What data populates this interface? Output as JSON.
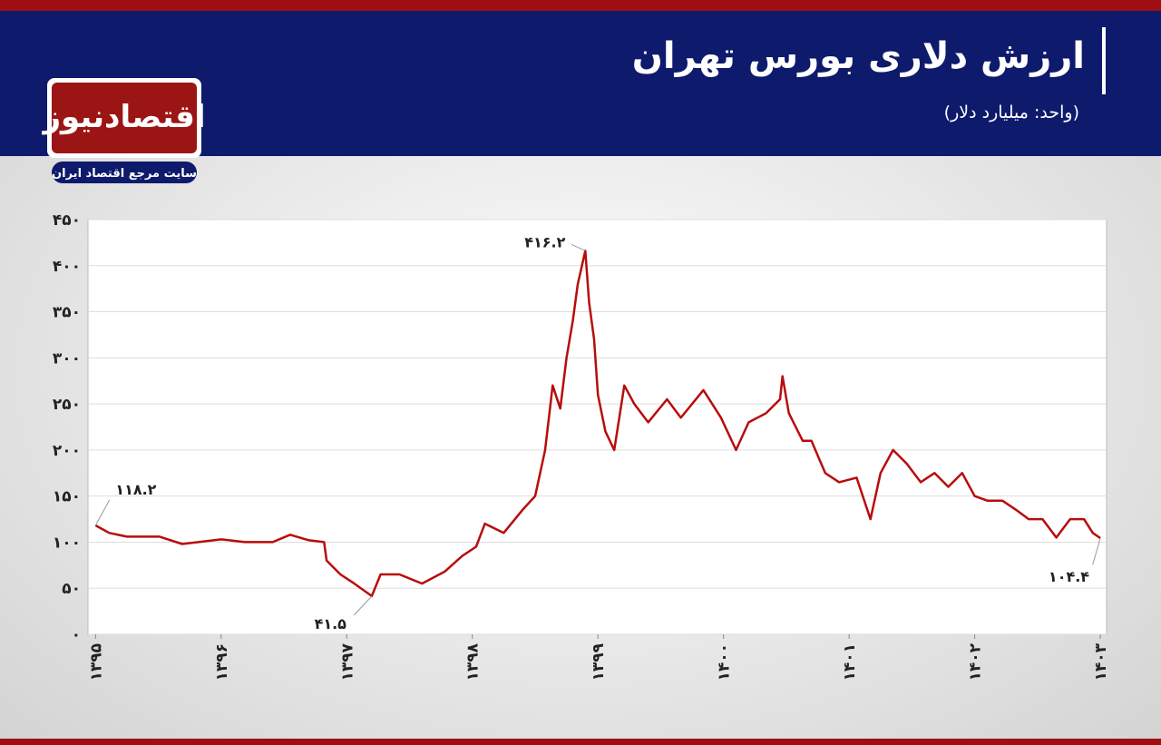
{
  "header": {
    "title": "ارزش دلاری بورس تهران",
    "subtitle": "(واحد: میلیارد دلار)",
    "logo": "اقتصادنیوز",
    "tagline": "سایت مرجع اقتصاد ایران"
  },
  "chart_data": {
    "type": "line",
    "color": "#b80c0c",
    "grid": true,
    "xlim": [
      1394.94,
      1403.05
    ],
    "ylim": [
      0,
      450
    ],
    "xticks": [
      {
        "value": 1395,
        "label": "۱۳۹۵"
      },
      {
        "value": 1396,
        "label": "۱۳۹۶"
      },
      {
        "value": 1397,
        "label": "۱۳۹۷"
      },
      {
        "value": 1398,
        "label": "۱۳۹۸"
      },
      {
        "value": 1399,
        "label": "۱۳۹۹"
      },
      {
        "value": 1400,
        "label": "۱۴۰۰"
      },
      {
        "value": 1401,
        "label": "۱۴۰۱"
      },
      {
        "value": 1402,
        "label": "۱۴۰۲"
      },
      {
        "value": 1403,
        "label": "۱۴۰۳"
      }
    ],
    "yticks": [
      {
        "value": 0,
        "label": "۰"
      },
      {
        "value": 50,
        "label": "۵۰"
      },
      {
        "value": 100,
        "label": "۱۰۰"
      },
      {
        "value": 150,
        "label": "۱۵۰"
      },
      {
        "value": 200,
        "label": "۲۰۰"
      },
      {
        "value": 250,
        "label": "۲۵۰"
      },
      {
        "value": 300,
        "label": "۳۰۰"
      },
      {
        "value": 350,
        "label": "۳۵۰"
      },
      {
        "value": 400,
        "label": "۴۰۰"
      },
      {
        "value": 450,
        "label": "۴۵۰"
      }
    ],
    "x": [
      1395.0,
      1395.11,
      1395.25,
      1395.51,
      1395.69,
      1396.0,
      1396.19,
      1396.41,
      1396.55,
      1396.7,
      1396.82,
      1396.84,
      1396.95,
      1397.06,
      1397.2,
      1397.27,
      1397.42,
      1397.6,
      1397.78,
      1397.92,
      1398.03,
      1398.1,
      1398.25,
      1398.4,
      1398.5,
      1398.58,
      1398.64,
      1398.7,
      1398.75,
      1398.8,
      1398.84,
      1398.9,
      1398.93,
      1398.97,
      1399.0,
      1399.06,
      1399.13,
      1399.21,
      1399.29,
      1399.4,
      1399.55,
      1399.66,
      1399.84,
      1399.98,
      1400.1,
      1400.2,
      1400.34,
      1400.45,
      1400.47,
      1400.52,
      1400.63,
      1400.7,
      1400.81,
      1400.92,
      1401.06,
      1401.17,
      1401.25,
      1401.35,
      1401.46,
      1401.57,
      1401.68,
      1401.79,
      1401.9,
      1402.0,
      1402.1,
      1402.22,
      1402.33,
      1402.43,
      1402.54,
      1402.65,
      1402.76,
      1402.87,
      1402.94,
      1403.0
    ],
    "values": [
      118.2,
      110,
      106,
      106,
      98,
      103,
      100,
      100,
      108,
      102,
      100,
      80,
      65,
      55,
      41.5,
      65,
      65,
      55,
      68,
      85,
      95,
      120,
      110,
      135,
      150,
      200,
      270,
      245,
      300,
      340,
      380,
      416.2,
      360,
      320,
      260,
      220,
      200,
      270,
      250,
      230,
      255,
      235,
      265,
      235,
      200,
      230,
      240,
      255,
      280,
      240,
      210,
      210,
      175,
      165,
      170,
      125,
      175,
      200,
      185,
      165,
      175,
      160,
      175,
      150,
      145,
      145,
      135,
      125,
      125,
      105,
      125,
      125,
      110,
      104.4
    ],
    "annotations": [
      {
        "text": "۱۱۸.۲",
        "x": 1395.0,
        "y": 118.2
      },
      {
        "text": "۴۱.۵",
        "x": 1397.2,
        "y": 41.5
      },
      {
        "text": "۴۱۶.۲",
        "x": 1398.9,
        "y": 416.2
      },
      {
        "text": "۱۰۴.۴",
        "x": 1403.0,
        "y": 104.4
      }
    ]
  }
}
